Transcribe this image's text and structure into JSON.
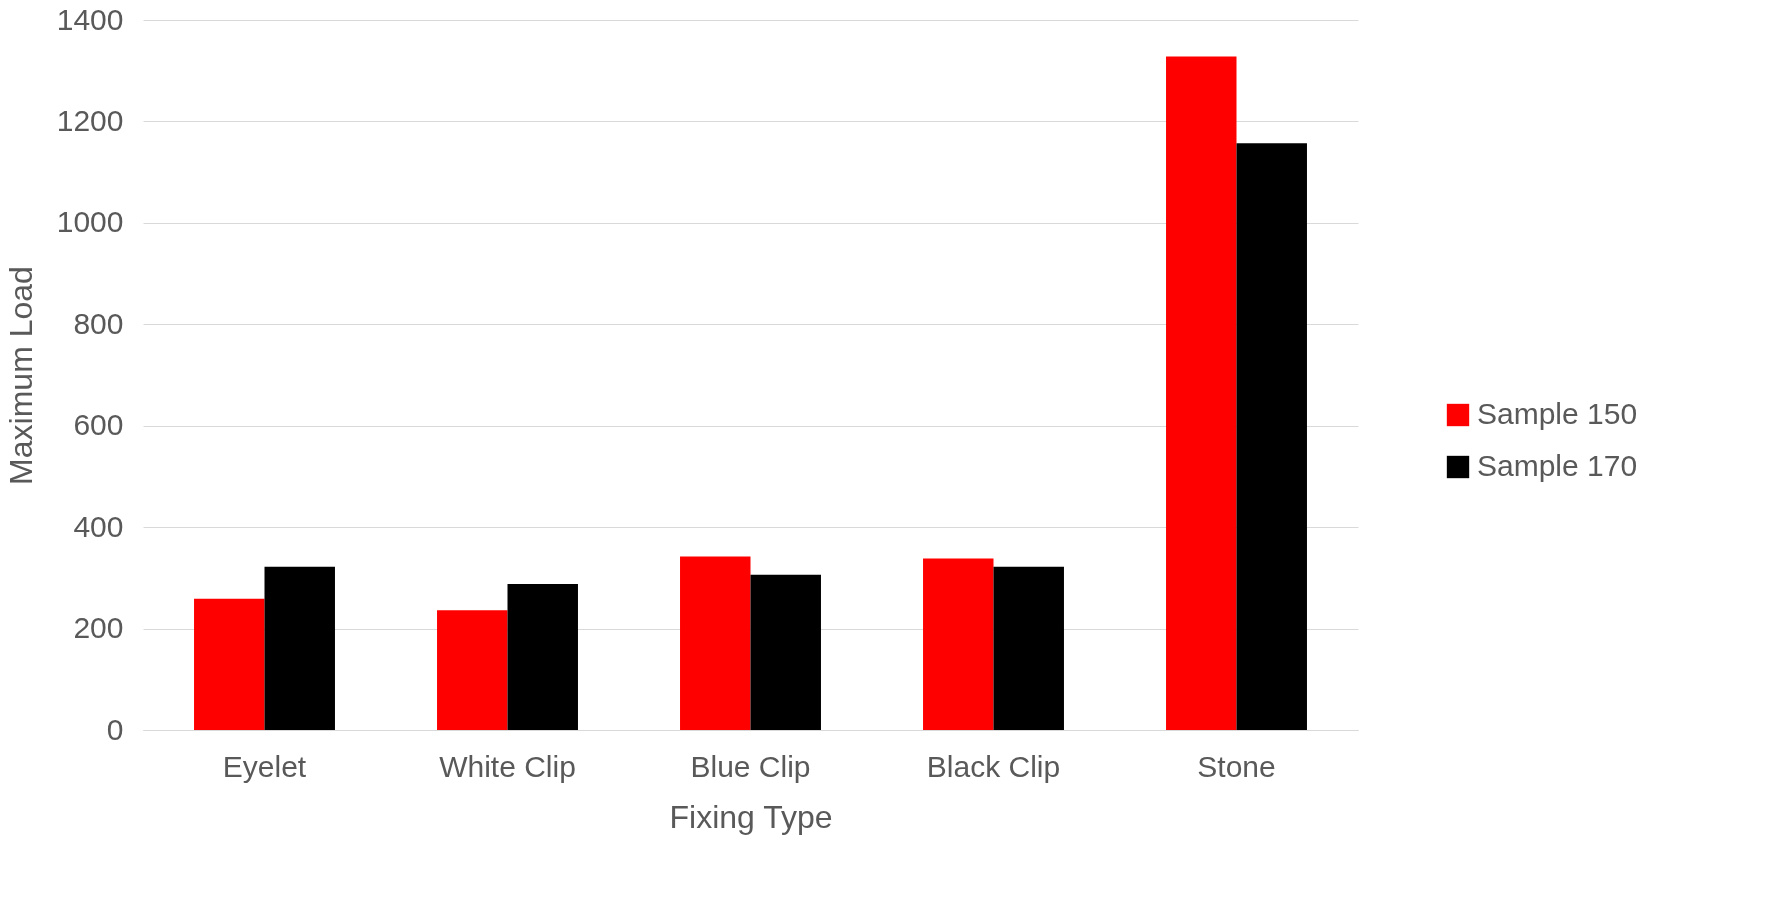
{
  "chart_data": {
    "type": "bar",
    "xlabel": "Fixing Type",
    "ylabel": "Maximum Load",
    "categories": [
      "Eyelet",
      "White Clip",
      "Blue Clip",
      "Black Clip",
      "Stone"
    ],
    "series": [
      {
        "name": "Sample 150",
        "color": "#ff0000",
        "values": [
          259,
          236,
          342,
          338,
          1328
        ]
      },
      {
        "name": "Sample 170",
        "color": "#000000",
        "values": [
          322,
          288,
          306,
          322,
          1157
        ]
      }
    ],
    "ylim": [
      0,
      1400
    ],
    "yticks": [
      0,
      200,
      400,
      600,
      800,
      1000,
      1200,
      1400
    ],
    "grid": "y",
    "legend": "right"
  }
}
